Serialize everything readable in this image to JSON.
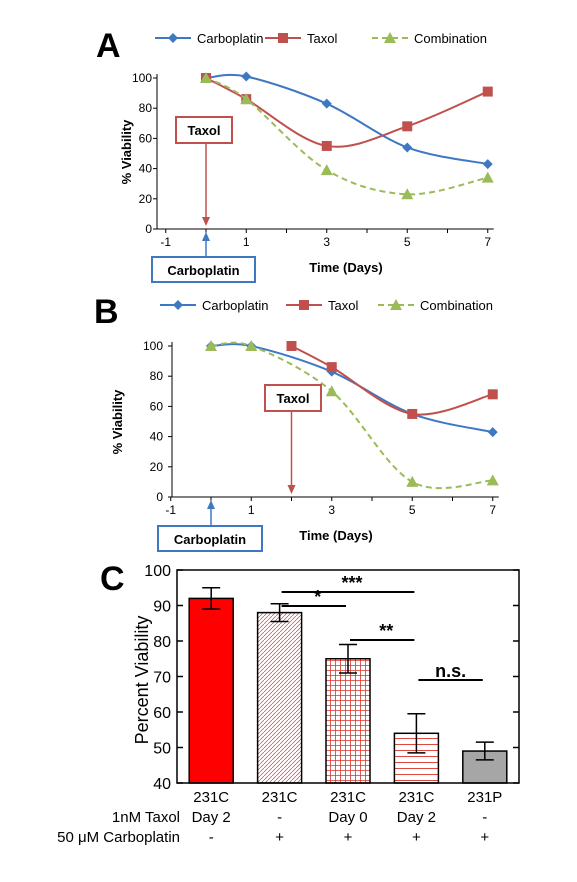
{
  "panels": {
    "a_label": "A",
    "b_label": "B",
    "c_label": "C"
  },
  "chart_data": [
    {
      "type": "line",
      "panel": "A",
      "xlabel": "Time (Days)",
      "ylabel": "% Viability",
      "xlim": [
        -1,
        7
      ],
      "ylim": [
        0,
        100
      ],
      "xticks": [
        "-1",
        "1",
        "3",
        "5",
        "7"
      ],
      "yticks": [
        "0",
        "20",
        "40",
        "60",
        "80",
        "100"
      ],
      "legend_position": "top",
      "series": [
        {
          "name": "Carboplatin",
          "color": "#3f78c2",
          "marker": "diamond",
          "dash": "solid",
          "points": [
            [
              0,
              100
            ],
            [
              1,
              101
            ],
            [
              3,
              83
            ],
            [
              5,
              54
            ],
            [
              7,
              43
            ]
          ]
        },
        {
          "name": "Taxol",
          "color": "#c0504d",
          "marker": "square",
          "dash": "solid",
          "points": [
            [
              0,
              100
            ],
            [
              1,
              86
            ],
            [
              3,
              55
            ],
            [
              5,
              68
            ],
            [
              7,
              91
            ]
          ]
        },
        {
          "name": "Combination",
          "color": "#9bbb59",
          "marker": "triangle",
          "dash": "dashed",
          "points": [
            [
              0,
              100
            ],
            [
              1,
              86
            ],
            [
              3,
              39
            ],
            [
              5,
              23
            ],
            [
              7,
              34
            ]
          ]
        }
      ],
      "annotations": [
        {
          "text": "Taxol",
          "color": "#c0504d",
          "arrow_at_day": 0
        },
        {
          "text": "Carboplatin",
          "color": "#3f78c2",
          "arrow_at_day": 0
        }
      ]
    },
    {
      "type": "line",
      "panel": "B",
      "xlabel": "Time (Days)",
      "ylabel": "% Viability",
      "xlim": [
        -1,
        7
      ],
      "ylim": [
        0,
        100
      ],
      "xticks": [
        "-1",
        "1",
        "3",
        "5",
        "7"
      ],
      "yticks": [
        "0",
        "20",
        "40",
        "60",
        "80",
        "100"
      ],
      "legend_position": "top",
      "series": [
        {
          "name": "Carboplatin",
          "color": "#3f78c2",
          "marker": "diamond",
          "dash": "solid",
          "points": [
            [
              0,
              100
            ],
            [
              1,
              100
            ],
            [
              3,
              83
            ],
            [
              5,
              55
            ],
            [
              7,
              43
            ]
          ]
        },
        {
          "name": "Taxol",
          "color": "#c0504d",
          "marker": "square",
          "dash": "solid",
          "points": [
            [
              2,
              100
            ],
            [
              3,
              86
            ],
            [
              5,
              55
            ],
            [
              7,
              68
            ]
          ]
        },
        {
          "name": "Combination",
          "color": "#9bbb59",
          "marker": "triangle",
          "dash": "dashed",
          "points": [
            [
              0,
              100
            ],
            [
              1,
              100
            ],
            [
              3,
              70
            ],
            [
              5,
              10
            ],
            [
              7,
              11
            ]
          ]
        }
      ],
      "annotations": [
        {
          "text": "Taxol",
          "color": "#c0504d",
          "arrow_at_day": 2
        },
        {
          "text": "Carboplatin",
          "color": "#3f78c2",
          "arrow_at_day": 0
        }
      ]
    },
    {
      "type": "bar",
      "panel": "C",
      "ylabel": "Percent Viability",
      "ylim": [
        40,
        100
      ],
      "yticks": [
        "40",
        "50",
        "60",
        "70",
        "80",
        "90",
        "100"
      ],
      "categories": [
        "231C",
        "231C",
        "231C",
        "231C",
        "231P"
      ],
      "values": [
        92,
        88,
        75,
        54,
        49
      ],
      "errors": [
        3,
        2.5,
        4,
        5.5,
        2.5
      ],
      "fills": [
        "solid-red",
        "diag-red",
        "grid-red",
        "hline-red",
        "solid-gray"
      ],
      "row_labels": [
        {
          "label": "1nM Taxol",
          "values": [
            "Day 2",
            "-",
            "Day 0",
            "Day 2",
            "-"
          ]
        },
        {
          "label": "50 μM Carboplatin",
          "values": [
            "-",
            "+",
            "+",
            "+",
            "+"
          ]
        }
      ],
      "significance": [
        {
          "from": 1,
          "to": 3,
          "text": "***"
        },
        {
          "from": 1,
          "to": 2,
          "text": "*"
        },
        {
          "from": 2,
          "to": 3,
          "text": "**"
        },
        {
          "from": 3,
          "to": 4,
          "text": "n.s."
        }
      ]
    }
  ]
}
